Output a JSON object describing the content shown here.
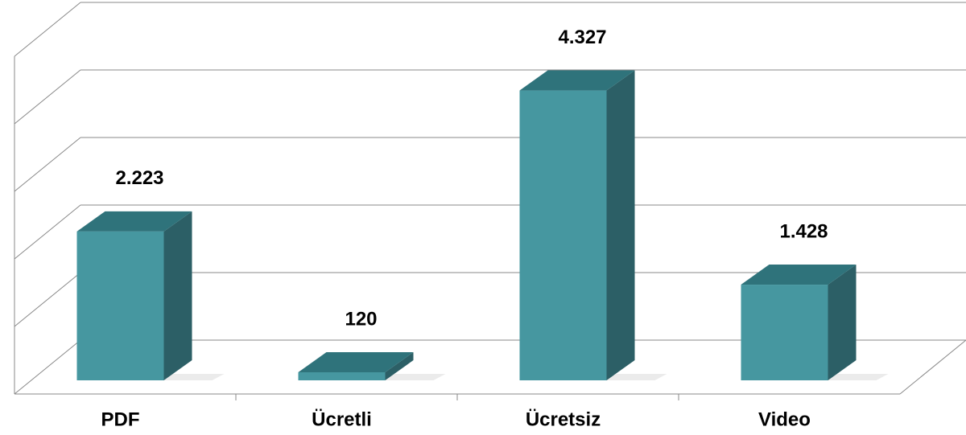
{
  "chart_data": {
    "type": "bar3d",
    "categories": [
      "PDF",
      "Ücretli",
      "Ücretsiz",
      "Video"
    ],
    "values": [
      2223,
      120,
      4327,
      1428
    ],
    "value_labels": [
      "2.223",
      "120",
      "4.327",
      "1.428"
    ],
    "color": "#4697a0",
    "ylim": [
      0,
      5000
    ],
    "yticks": [
      0,
      1000,
      2000,
      3000,
      4000,
      5000
    ],
    "grid": true
  }
}
